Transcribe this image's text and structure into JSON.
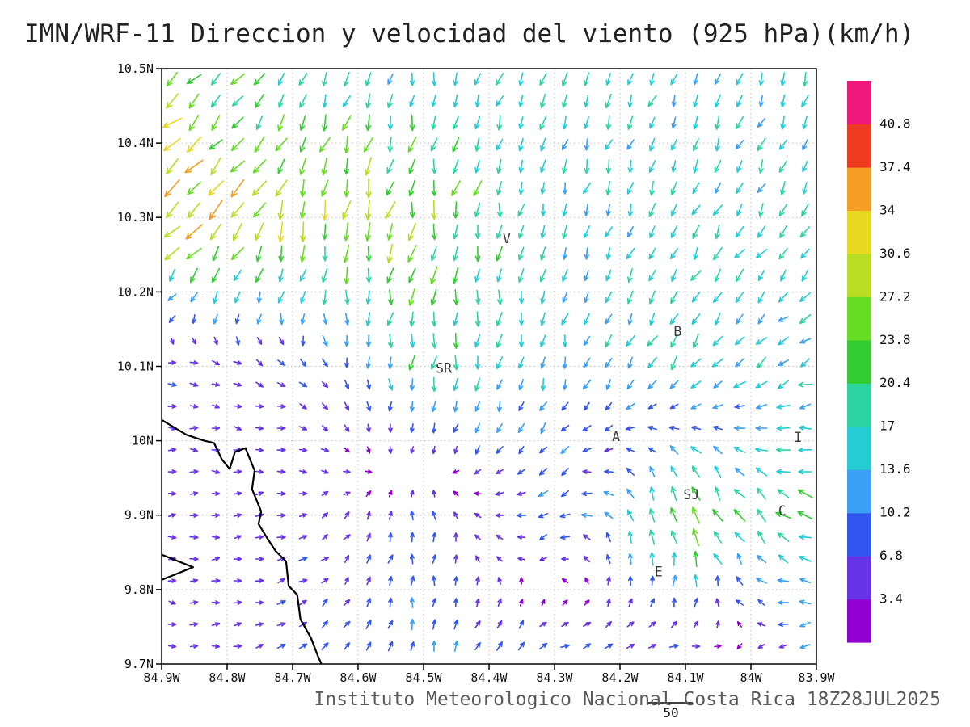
{
  "caption": "Instituto Meteorologico Nacional Costa Rica 18Z28JUL2025",
  "ref_label": "50",
  "chart_data": {
    "type": "vector_field",
    "title": "IMN/WRF-11 Direccion y velocidad del viento (925 hPa)(km/h)",
    "units": "km/h",
    "lon_range": [
      84.9,
      83.9
    ],
    "lat_range": [
      10.5,
      9.7
    ],
    "grid": "0.1 deg dotted",
    "x_axis": {
      "ticks": [
        {
          "lon": 84.9,
          "label": "84.9W"
        },
        {
          "lon": 84.8,
          "label": "84.8W"
        },
        {
          "lon": 84.7,
          "label": "84.7W"
        },
        {
          "lon": 84.6,
          "label": "84.6W"
        },
        {
          "lon": 84.5,
          "label": "84.5W"
        },
        {
          "lon": 84.4,
          "label": "84.4W"
        },
        {
          "lon": 84.3,
          "label": "84.3W"
        },
        {
          "lon": 84.2,
          "label": "84.2W"
        },
        {
          "lon": 84.1,
          "label": "84.1W"
        },
        {
          "lon": 84.0,
          "label": "84W"
        },
        {
          "lon": 83.9,
          "label": "83.9W"
        }
      ]
    },
    "y_axis": {
      "ticks": [
        {
          "lat": 10.5,
          "label": "10.5N"
        },
        {
          "lat": 10.4,
          "label": "10.4N"
        },
        {
          "lat": 10.3,
          "label": "10.3N"
        },
        {
          "lat": 10.2,
          "label": "10.2N"
        },
        {
          "lat": 10.1,
          "label": "10.1N"
        },
        {
          "lat": 10.0,
          "label": "10N"
        },
        {
          "lat": 9.9,
          "label": "9.9N"
        },
        {
          "lat": 9.8,
          "label": "9.8N"
        },
        {
          "lat": 9.7,
          "label": "9.7N"
        }
      ]
    },
    "colorbar": {
      "orientation": "vertical",
      "levels": [
        "3.4",
        "6.8",
        "10.2",
        "13.6",
        "17",
        "20.4",
        "23.8",
        "27.2",
        "30.6",
        "34",
        "37.4",
        "40.8"
      ],
      "colors": [
        "#9000d0",
        "#6633e6",
        "#3355f0",
        "#3aa0f5",
        "#26cbd4",
        "#2bd4a0",
        "#33cc33",
        "#66dd22",
        "#b8dd22",
        "#e8d820",
        "#f59e23",
        "#ee3b22",
        "#f0187c"
      ]
    },
    "stations": [
      {
        "id": "V",
        "lon": 84.373,
        "lat": 10.271
      },
      {
        "id": "B",
        "lon": 84.112,
        "lat": 10.146
      },
      {
        "id": "SR",
        "lon": 84.469,
        "lat": 10.097
      },
      {
        "id": "A",
        "lon": 84.206,
        "lat": 10.005
      },
      {
        "id": "I",
        "lon": 83.928,
        "lat": 10.004
      },
      {
        "id": "SJ",
        "lon": 84.091,
        "lat": 9.927
      },
      {
        "id": "C",
        "lon": 83.952,
        "lat": 9.905
      },
      {
        "id": "E",
        "lon": 84.141,
        "lat": 9.823
      }
    ],
    "coastline": [
      [
        [
          84.9,
          10.028
        ],
        [
          84.862,
          10.008
        ],
        [
          84.835,
          10.0
        ],
        [
          84.82,
          9.997
        ],
        [
          84.808,
          9.975
        ],
        [
          84.796,
          9.962
        ],
        [
          84.788,
          9.985
        ],
        [
          84.772,
          9.99
        ],
        [
          84.758,
          9.96
        ],
        [
          84.762,
          9.935
        ],
        [
          84.748,
          9.905
        ],
        [
          84.752,
          9.888
        ],
        [
          84.738,
          9.868
        ],
        [
          84.726,
          9.852
        ],
        [
          84.71,
          9.838
        ],
        [
          84.706,
          9.805
        ],
        [
          84.693,
          9.793
        ],
        [
          84.688,
          9.76
        ],
        [
          84.672,
          9.735
        ],
        [
          84.662,
          9.712
        ],
        [
          84.656,
          9.7
        ]
      ],
      [
        [
          84.9,
          9.847
        ],
        [
          84.852,
          9.83
        ],
        [
          84.9,
          9.813
        ]
      ]
    ],
    "wind_field": {
      "comment": "u=eastward, v=northward km/h control points; field interpolated bilinearly",
      "lons": [
        84.9,
        84.7,
        84.5,
        84.3,
        84.1,
        83.9
      ],
      "lats": [
        10.5,
        10.3,
        10.1,
        9.9,
        9.7
      ],
      "u": [
        [
          -20,
          -8,
          -3,
          -8,
          -5,
          -5
        ],
        [
          -25,
          -10,
          -5,
          -3,
          -8,
          -8
        ],
        [
          6,
          5,
          -2,
          -3,
          -10,
          -14
        ],
        [
          5,
          6,
          0,
          -10,
          -6,
          -20
        ],
        [
          5,
          6,
          2,
          10,
          8,
          -10
        ]
      ],
      "v": [
        [
          -16,
          -16,
          -14,
          -16,
          -14,
          -14
        ],
        [
          -24,
          -28,
          -25,
          -15,
          -16,
          -13
        ],
        [
          0,
          -3,
          -20,
          -12,
          -14,
          -6
        ],
        [
          0,
          1,
          8,
          -5,
          28,
          5
        ],
        [
          -2,
          4,
          11,
          6,
          -3,
          -4
        ]
      ]
    },
    "reference_value": "50"
  }
}
